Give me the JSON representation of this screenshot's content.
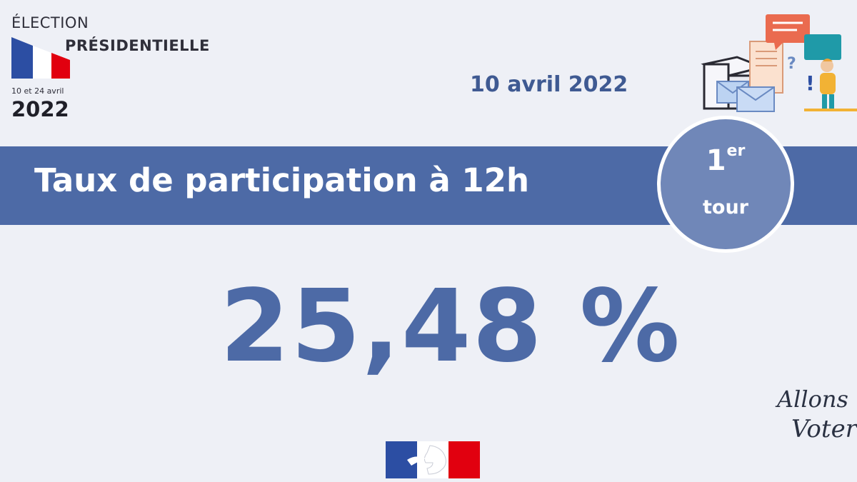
{
  "header": {
    "title_line1": "ÉLECTION",
    "title_line2": "PRÉSIDENTIELLE",
    "dates": "10 et 24 avril",
    "year": "2022"
  },
  "date": "10 avril 2022",
  "banner": {
    "title": "Taux de participation à 12h"
  },
  "tour_badge": {
    "number": "1",
    "suffix": "er",
    "word": "tour"
  },
  "participation_value": "25,48 %",
  "signature_text": "Allons Voter",
  "colors": {
    "background": "#eef0f6",
    "banner": "#4d6aa6",
    "badge": "#7087b8",
    "accent_text": "#3f5a92",
    "flag_blue": "#2c4ea3",
    "flag_red": "#e1000f"
  },
  "icons": [
    "french-flag-icon",
    "ballot-box-illustration",
    "marianne-logo",
    "allons-voter-logo"
  ]
}
